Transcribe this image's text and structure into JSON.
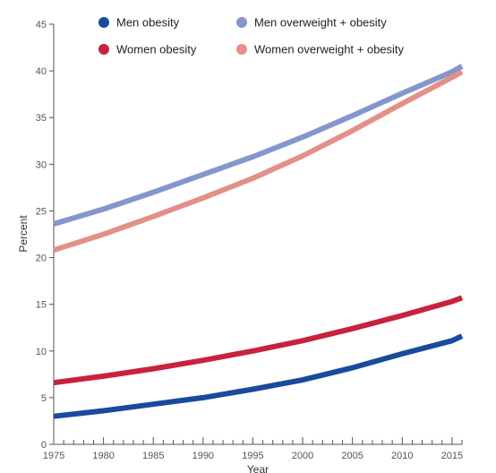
{
  "chart_data": {
    "type": "line",
    "title": "",
    "xlabel": "Year",
    "ylabel": "Percent",
    "xlim": [
      1975,
      2016
    ],
    "ylim": [
      0,
      45
    ],
    "x_ticks": [
      1975,
      1980,
      1985,
      1990,
      1995,
      2000,
      2005,
      2010,
      2015
    ],
    "y_ticks": [
      0,
      5,
      10,
      15,
      20,
      25,
      30,
      35,
      40,
      45
    ],
    "x_tick_labels": [
      "1975",
      "1980",
      "1985",
      "1990",
      "1995",
      "2000",
      "2005",
      "2010",
      "2015"
    ],
    "y_tick_labels": [
      "0",
      "5",
      "10",
      "15",
      "20",
      "25",
      "30",
      "35",
      "40",
      "45"
    ],
    "grid": false,
    "legend_position": "top",
    "series": [
      {
        "name": "Men obesity",
        "color": "#1a4a9c",
        "x": [
          1975,
          1980,
          1985,
          1990,
          1995,
          2000,
          2005,
          2010,
          2015,
          2016
        ],
        "y": [
          3.0,
          3.6,
          4.3,
          5.0,
          5.9,
          6.9,
          8.2,
          9.7,
          11.1,
          11.6
        ]
      },
      {
        "name": "Men overweight + obesity",
        "color": "#8496cc",
        "x": [
          1975,
          1980,
          1985,
          1990,
          1995,
          2000,
          2005,
          2010,
          2015,
          2016
        ],
        "y": [
          23.6,
          25.2,
          27.0,
          28.9,
          30.8,
          32.9,
          35.2,
          37.6,
          39.9,
          40.5
        ]
      },
      {
        "name": "Women obesity",
        "color": "#c8223f",
        "x": [
          1975,
          1980,
          1985,
          1990,
          1995,
          2000,
          2005,
          2010,
          2015,
          2016
        ],
        "y": [
          6.6,
          7.3,
          8.1,
          9.0,
          10.0,
          11.1,
          12.4,
          13.8,
          15.3,
          15.7
        ]
      },
      {
        "name": "Women overweight + obesity",
        "color": "#e39089",
        "x": [
          1975,
          1980,
          1985,
          1990,
          1995,
          2000,
          2005,
          2010,
          2015,
          2016
        ],
        "y": [
          20.8,
          22.5,
          24.4,
          26.4,
          28.5,
          30.9,
          33.6,
          36.5,
          39.3,
          39.9
        ]
      }
    ]
  }
}
